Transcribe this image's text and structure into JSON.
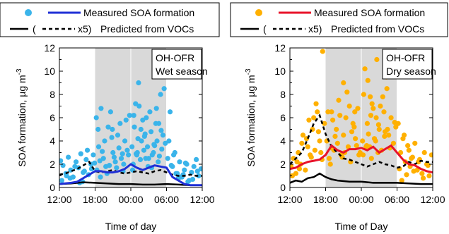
{
  "chart_data": [
    {
      "type": "scatter",
      "panel_label": "OH-OFR",
      "season": "Wet season",
      "xlabel": "Time of day",
      "ylabel": "SOA formation, µg m",
      "ylabel_sup": "-3",
      "ylim": [
        0,
        12
      ],
      "yticks": [
        "0",
        "2",
        "4",
        "6",
        "8",
        "10",
        "12"
      ],
      "xlim": [
        12,
        36
      ],
      "xticks": [
        {
          "v": 12,
          "label": "12:00"
        },
        {
          "v": 18,
          "label": "18:00"
        },
        {
          "v": 24,
          "label": "00:00"
        },
        {
          "v": 30,
          "label": "06:00"
        },
        {
          "v": 36,
          "label": "12:00"
        }
      ],
      "shade": [
        18,
        30
      ],
      "grid_x": [
        24,
        30
      ],
      "legend": {
        "measured": "Measured SOA formation",
        "predicted": "Predicted from VOCs",
        "x5": "x5)"
      },
      "colors": {
        "scatter": "#3ab4ea",
        "measured_line": "#1f2fd6",
        "predicted": "#000000",
        "shade": "#d9d9d9"
      },
      "measured_line": {
        "x": [
          12,
          13,
          14,
          15,
          16,
          17,
          18,
          19,
          20,
          21,
          22,
          23,
          24,
          25,
          26,
          27,
          28,
          29,
          30,
          31,
          32,
          33,
          34,
          35,
          36
        ],
        "y": [
          0.3,
          0.35,
          0.4,
          0.5,
          0.8,
          1.1,
          1.4,
          1.4,
          1.3,
          1.3,
          1.4,
          1.6,
          2.0,
          1.7,
          1.5,
          1.7,
          1.9,
          1.8,
          1.7,
          0.9,
          0.6,
          0.3,
          0.2,
          0.2,
          0.2
        ]
      },
      "predicted_x5": {
        "x": [
          12,
          13,
          14,
          15,
          16,
          17,
          18,
          19,
          20,
          21,
          22,
          23,
          24,
          25,
          26,
          27,
          28,
          29,
          30,
          31,
          32,
          33,
          34,
          35,
          36
        ],
        "y": [
          1.1,
          1.2,
          1.4,
          1.6,
          1.9,
          2.2,
          1.4,
          1.3,
          1.4,
          1.5,
          1.3,
          1.2,
          1.3,
          1.4,
          1.3,
          1.2,
          1.4,
          1.5,
          1.3,
          1.1,
          1.0,
          1.0,
          1.1,
          1.0,
          1.0
        ]
      },
      "predicted": {
        "x": [
          12,
          14,
          16,
          18,
          20,
          22,
          24,
          26,
          28,
          30,
          32,
          34,
          36
        ],
        "y": [
          0.3,
          0.35,
          0.45,
          0.4,
          0.35,
          0.3,
          0.3,
          0.25,
          0.25,
          0.3,
          0.25,
          0.2,
          0.2
        ]
      },
      "scatter": {
        "x": [
          12.2,
          12.6,
          13.1,
          13.5,
          13.9,
          14.3,
          14.8,
          15.2,
          15.6,
          16.0,
          16.5,
          16.9,
          17.3,
          17.7,
          12.4,
          13.2,
          14.6,
          15.9,
          16.7,
          17.4,
          13.8,
          15.4,
          16.2,
          17.9,
          18.2,
          18.6,
          19.0,
          19.4,
          19.8,
          20.2,
          20.6,
          21.0,
          21.4,
          21.8,
          22.2,
          22.6,
          23.0,
          23.4,
          23.8,
          18.3,
          18.8,
          19.6,
          20.4,
          21.2,
          22.0,
          22.8,
          23.6,
          18.5,
          19.2,
          20.0,
          20.8,
          21.6,
          22.4,
          23.2,
          18.9,
          20.9,
          22.7,
          24.2,
          24.6,
          25.0,
          25.4,
          25.8,
          26.2,
          26.6,
          27.0,
          27.4,
          27.8,
          28.2,
          28.6,
          29.0,
          29.4,
          29.8,
          24.4,
          25.2,
          26.0,
          26.8,
          27.6,
          28.4,
          29.2,
          24.8,
          25.6,
          26.4,
          27.2,
          28.0,
          28.8,
          29.6,
          24.3,
          25.1,
          26.5,
          27.9,
          29.1,
          25.7,
          26.9,
          28.3,
          24.9,
          26.3,
          27.5,
          28.7,
          25.3,
          24.5,
          30.2,
          30.6,
          31.0,
          31.4,
          31.8,
          32.2,
          32.6,
          33.0,
          33.4,
          33.8,
          34.2,
          34.6,
          35.0,
          35.4,
          35.8,
          30.4,
          31.2,
          32.0,
          32.8,
          33.6,
          34.4,
          35.2,
          30.8,
          31.6,
          32.4,
          33.2
        ],
        "y": [
          2.3,
          1.9,
          1.2,
          2.6,
          1.5,
          0.9,
          2.2,
          1.7,
          2.9,
          1.3,
          2.4,
          1.1,
          2.0,
          2.8,
          0.6,
          1.0,
          1.8,
          0.5,
          3.2,
          1.6,
          0.8,
          0.4,
          1.4,
          2.1,
          6.0,
          3.5,
          6.8,
          2.5,
          1.8,
          5.2,
          6.5,
          3.0,
          2.2,
          4.5,
          5.5,
          2.9,
          4.0,
          3.2,
          6.2,
          1.5,
          2.3,
          4.0,
          1.9,
          2.6,
          3.4,
          2.0,
          2.8,
          5.0,
          3.1,
          1.2,
          4.3,
          1.7,
          2.5,
          5.8,
          0.9,
          5.0,
          1.4,
          3.5,
          5.2,
          2.8,
          7.0,
          4.0,
          3.2,
          6.0,
          2.5,
          4.8,
          3.0,
          5.5,
          2.2,
          8.0,
          4.5,
          3.8,
          2.0,
          4.2,
          5.8,
          3.5,
          2.8,
          4.0,
          3.3,
          7.2,
          2.4,
          4.6,
          6.5,
          3.6,
          2.7,
          8.5,
          1.5,
          3.0,
          2.5,
          3.7,
          4.9,
          5.0,
          1.8,
          6.8,
          2.9,
          4.4,
          1.7,
          5.5,
          9.0,
          6.2,
          2.5,
          6.5,
          1.8,
          3.0,
          1.2,
          2.2,
          0.9,
          1.5,
          2.0,
          0.6,
          1.3,
          1.8,
          2.4,
          1.0,
          1.6,
          4.0,
          2.8,
          0.8,
          1.1,
          0.5,
          0.7,
          1.4,
          1.9,
          1.2,
          0.9,
          2.1
        ]
      }
    },
    {
      "type": "scatter",
      "panel_label": "OH-OFR",
      "season": "Dry season",
      "xlabel": "Time of Day",
      "ylabel": "SOA formation, µg m",
      "ylabel_sup": "-3",
      "ylim": [
        0,
        12
      ],
      "yticks": [
        "0",
        "2",
        "4",
        "6",
        "8",
        "10",
        "12"
      ],
      "xlim": [
        12,
        36
      ],
      "xticks": [
        {
          "v": 12,
          "label": "12:00"
        },
        {
          "v": 18,
          "label": "18:00"
        },
        {
          "v": 24,
          "label": "00:00"
        },
        {
          "v": 30,
          "label": "06:00"
        },
        {
          "v": 36,
          "label": "12:00"
        }
      ],
      "shade": [
        18,
        30
      ],
      "grid_x": [
        24,
        30
      ],
      "legend": {
        "measured": "Measured SOA formation",
        "predicted": "Predicted from VOCs",
        "x5": "x5)"
      },
      "colors": {
        "scatter": "#ffb000",
        "measured_line": "#e8132a",
        "predicted": "#000000",
        "shade": "#d9d9d9"
      },
      "measured_line": {
        "x": [
          12,
          13,
          14,
          15,
          16,
          17,
          18,
          19,
          20,
          21,
          22,
          23,
          24,
          25,
          26,
          27,
          28,
          29,
          30,
          31,
          32,
          33,
          34,
          35,
          36
        ],
        "y": [
          1.6,
          1.7,
          2.0,
          2.2,
          2.3,
          2.4,
          2.8,
          3.6,
          3.2,
          3.0,
          3.3,
          3.3,
          3.4,
          3.2,
          3.5,
          3.0,
          3.3,
          3.6,
          3.0,
          2.4,
          2.0,
          1.9,
          1.6,
          1.4,
          1.3
        ]
      },
      "predicted_x5": {
        "x": [
          12,
          13,
          14,
          15,
          16,
          17,
          18,
          19,
          20,
          21,
          22,
          23,
          24,
          25,
          26,
          27,
          28,
          29,
          30,
          31,
          32,
          33,
          34,
          35,
          36
        ],
        "y": [
          2.0,
          2.5,
          3.0,
          4.2,
          5.5,
          6.2,
          4.6,
          3.5,
          3.0,
          2.5,
          2.4,
          2.2,
          2.0,
          1.8,
          2.0,
          2.2,
          2.0,
          1.9,
          1.7,
          1.8,
          2.2,
          2.0,
          2.3,
          2.2,
          2.2
        ]
      },
      "predicted": {
        "x": [
          12,
          13,
          14,
          15,
          16,
          17,
          18,
          19,
          20,
          22,
          24,
          26,
          28,
          30,
          32,
          34,
          36
        ],
        "y": [
          0.4,
          0.6,
          0.5,
          0.8,
          0.9,
          1.2,
          0.9,
          0.7,
          0.6,
          0.5,
          0.5,
          0.4,
          0.4,
          0.4,
          0.35,
          0.3,
          0.3
        ]
      },
      "scatter": {
        "x": [
          12.2,
          12.6,
          13.0,
          13.4,
          13.8,
          14.2,
          14.6,
          15.0,
          15.4,
          15.8,
          16.2,
          16.6,
          17.0,
          17.4,
          17.8,
          12.4,
          13.2,
          14.0,
          14.8,
          15.6,
          16.4,
          17.2,
          13.6,
          15.2,
          16.8,
          16.0,
          17.5,
          18.2,
          18.6,
          19.0,
          19.4,
          19.8,
          20.2,
          20.6,
          21.0,
          21.4,
          21.8,
          22.2,
          22.6,
          23.0,
          23.4,
          23.8,
          18.4,
          19.2,
          20.0,
          20.8,
          21.6,
          22.4,
          23.2,
          18.8,
          19.6,
          20.4,
          21.2,
          22.0,
          22.8,
          23.6,
          19.0,
          21.0,
          22.9,
          24.2,
          24.6,
          25.0,
          25.4,
          25.8,
          26.2,
          26.6,
          27.0,
          27.4,
          27.8,
          28.2,
          28.6,
          29.0,
          29.4,
          29.8,
          24.4,
          25.2,
          26.0,
          26.8,
          27.6,
          28.4,
          29.2,
          24.8,
          25.6,
          26.4,
          27.2,
          28.0,
          28.8,
          29.6,
          24.3,
          25.1,
          26.5,
          27.9,
          25.7,
          26.9,
          28.3,
          24.9,
          25.5,
          30.2,
          30.6,
          31.0,
          31.4,
          31.8,
          32.2,
          32.6,
          33.0,
          33.4,
          33.8,
          34.2,
          34.6,
          35.0,
          35.4,
          35.8,
          30.4,
          31.2,
          32.0,
          32.8,
          33.6,
          34.4,
          35.2,
          30.8,
          31.6,
          32.4
        ],
        "y": [
          1.8,
          2.5,
          1.2,
          3.0,
          2.0,
          4.5,
          1.5,
          3.5,
          2.8,
          5.0,
          3.2,
          6.5,
          4.0,
          2.4,
          5.5,
          1.0,
          2.2,
          3.8,
          4.2,
          2.6,
          7.2,
          3.0,
          1.6,
          5.8,
          4.8,
          6.0,
          11.7,
          4.0,
          2.5,
          6.5,
          3.2,
          5.0,
          7.5,
          2.8,
          4.5,
          6.0,
          3.5,
          2.2,
          5.5,
          4.2,
          6.8,
          3.0,
          6.5,
          5.8,
          3.8,
          2.6,
          8.2,
          4.8,
          3.6,
          2.0,
          4.4,
          6.2,
          3.0,
          7.0,
          5.2,
          2.8,
          3.4,
          9.0,
          6.5,
          4.0,
          10.2,
          5.5,
          3.5,
          7.2,
          4.2,
          11.0,
          5.0,
          3.2,
          6.5,
          9.5,
          4.5,
          6.0,
          3.8,
          5.2,
          8.0,
          4.6,
          6.8,
          3.0,
          7.8,
          5.0,
          10.8,
          3.5,
          6.2,
          4.0,
          7.0,
          4.8,
          3.4,
          5.6,
          2.8,
          9.2,
          6.0,
          4.4,
          2.5,
          5.4,
          8.5,
          3.6,
          7.8,
          5.5,
          3.0,
          4.2,
          2.2,
          3.6,
          1.8,
          2.6,
          3.8,
          1.5,
          2.4,
          1.2,
          3.0,
          2.0,
          1.0,
          2.8,
          1.6,
          4.5,
          3.2,
          1.4,
          2.2,
          0.8,
          1.9,
          0.6,
          1.1,
          2.5
        ]
      }
    }
  ]
}
